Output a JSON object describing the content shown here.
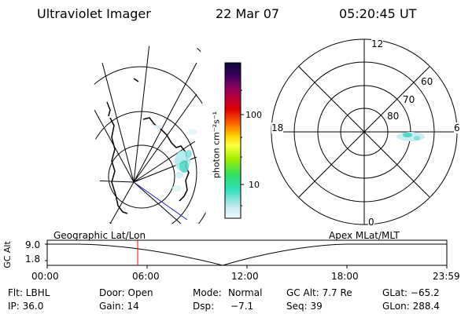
{
  "header": {
    "title": "Ultraviolet Imager",
    "date": "22 Mar 07",
    "time": "05:20:45 UT"
  },
  "colorbar": {
    "unit_label": "photon cm⁻²s⁻¹",
    "ticks": [
      "100",
      "10"
    ],
    "colors": [
      "#0a0a33",
      "#3a0060",
      "#a0005a",
      "#e00000",
      "#ff7000",
      "#ffd000",
      "#ffff40",
      "#a0f000",
      "#30e060",
      "#30e0c0",
      "#c0e8f0",
      "#f0f8ff"
    ]
  },
  "polar_plot": {
    "mlt_labels": {
      "top": "12",
      "right": "6",
      "left": "18",
      "bottom": "0"
    },
    "lat_labels": [
      "60",
      "70",
      "80"
    ]
  },
  "altitude_plot": {
    "axis_label": "GC Alt",
    "y_ticks": [
      "9.0",
      "1.8"
    ],
    "left_caption": "Geographic Lat/Lon",
    "right_caption": "Apex MLat/MLT",
    "x_ticks": [
      "00:00",
      "06:00",
      "12:00",
      "18:00",
      "23:59"
    ],
    "current_marker_color": "#ff0000"
  },
  "footer": {
    "row1": {
      "filter": "Flt: LBHL",
      "door": "Door: Open",
      "mode_label": "Mode:",
      "mode_value": "Normal",
      "gc_alt": "GC Alt: 7.7 Re",
      "glat": "GLat: −65.2"
    },
    "row2": {
      "ip": "IP: 36.0",
      "gain": "Gain: 14",
      "dsp_label": "Dsp:",
      "dsp_value": "−7.1",
      "seq": "Seq: 39",
      "glon": "GLon: 288.4"
    }
  }
}
